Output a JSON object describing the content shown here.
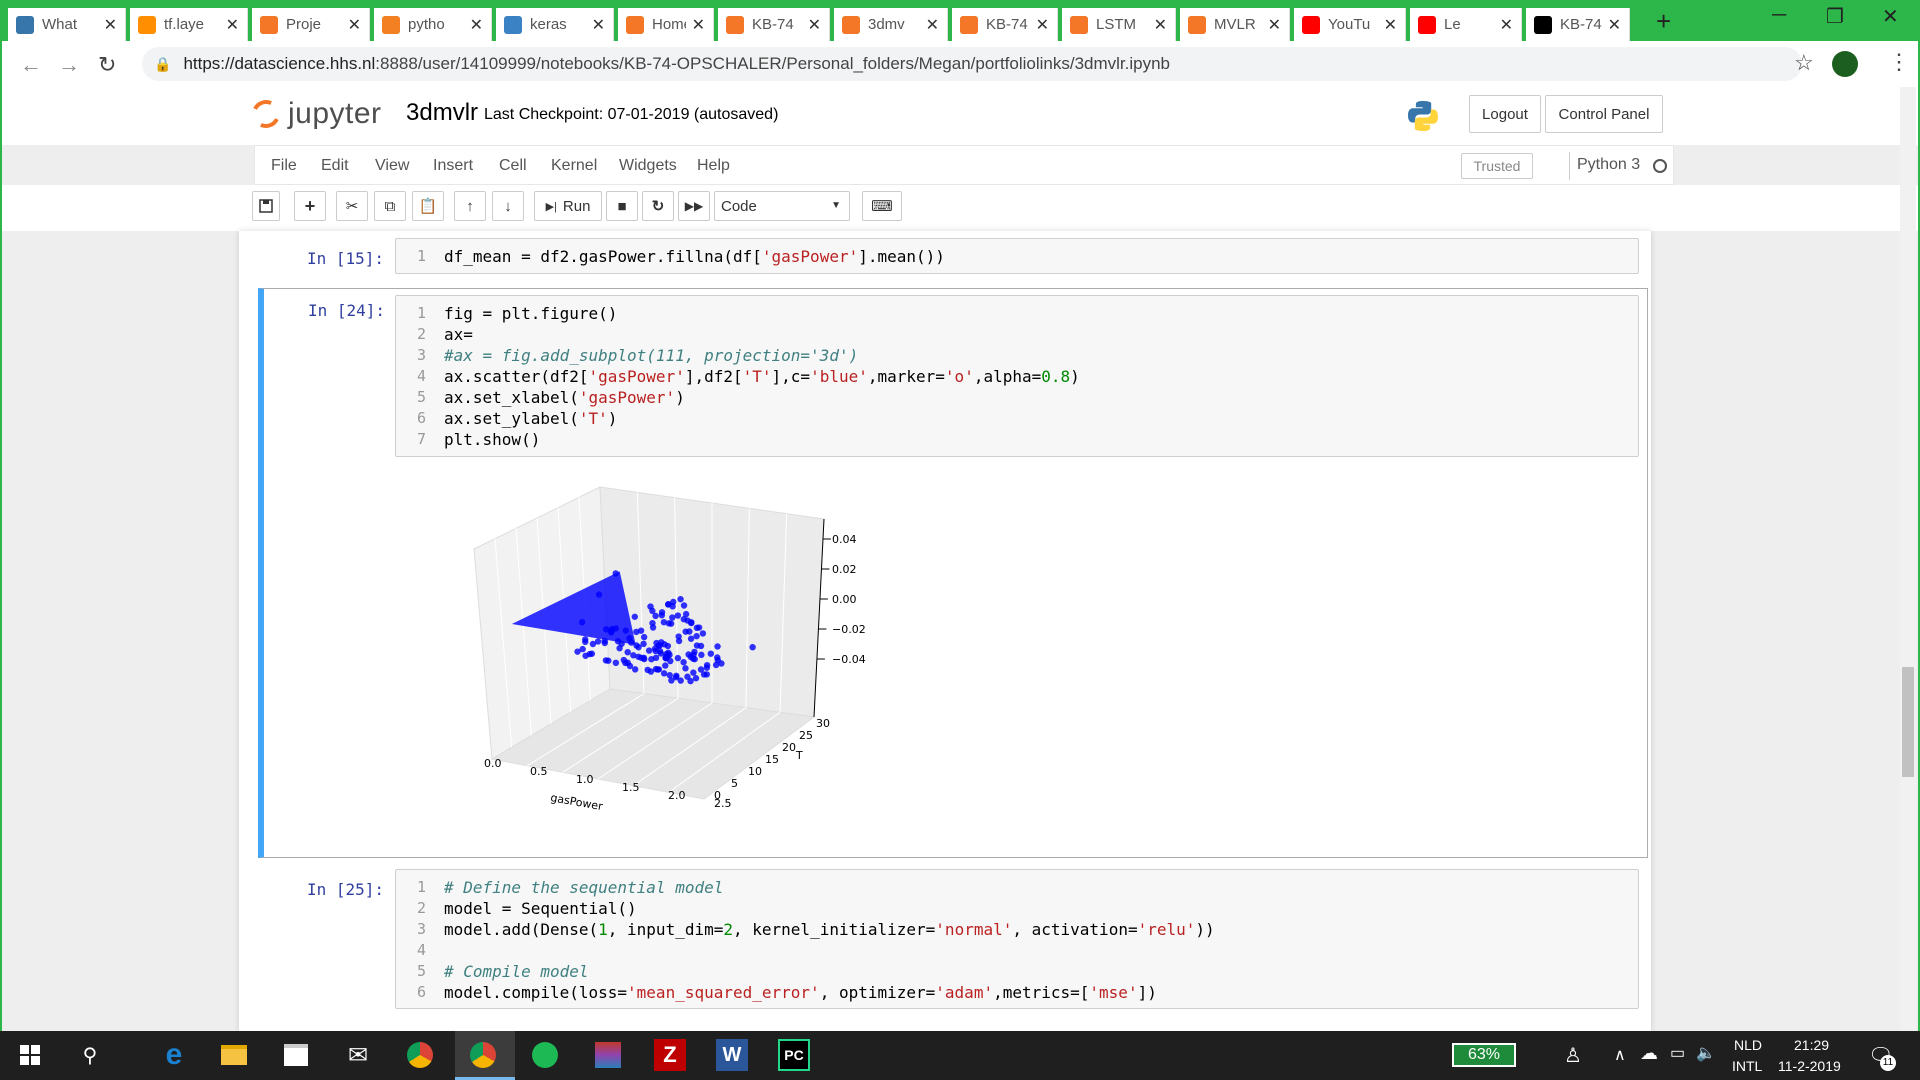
{
  "browser": {
    "tabs": [
      {
        "label": "What",
        "icon": "python-icon",
        "color": "#3776ab"
      },
      {
        "label": "tf.laye",
        "icon": "tensorflow-icon",
        "color": "#ff8f00"
      },
      {
        "label": "Proje",
        "icon": "jupyter-icon",
        "color": "#f37726"
      },
      {
        "label": "pytho",
        "icon": "stackoverflow-icon",
        "color": "#f48024"
      },
      {
        "label": "keras",
        "icon": "docs-icon",
        "color": "#3b82c4"
      },
      {
        "label": "Home",
        "icon": "jupyter-icon",
        "color": "#f37726"
      },
      {
        "label": "KB-74",
        "icon": "jupyter-icon",
        "color": "#f37726"
      },
      {
        "label": "3dmv",
        "icon": "notebook-icon",
        "color": "#f37726"
      },
      {
        "label": "KB-74",
        "icon": "jupyter-icon",
        "color": "#f37726"
      },
      {
        "label": "LSTM",
        "icon": "notebook-icon",
        "color": "#f37726"
      },
      {
        "label": "MVLR",
        "icon": "notebook-icon",
        "color": "#f37726"
      },
      {
        "label": "YouTu",
        "icon": "youtube-icon",
        "color": "#ff0000"
      },
      {
        "label": "Le",
        "icon": "youtube-icon",
        "color": "#ff0000"
      },
      {
        "label": "KB-74",
        "icon": "github-icon",
        "color": "#000000"
      }
    ],
    "url_host": "https://datascience.hhs.nl",
    "url_path": ":8888/user/14109999/notebooks/KB-74-OPSCHALER/Personal_folders/Megan/portfoliolinks/3dmvlr.ipynb"
  },
  "jupyter": {
    "logo_text": "jupyter",
    "notebook_name": "3dmvlr",
    "checkpoint": "Last Checkpoint: 07-01-2019  (autosaved)",
    "logout": "Logout",
    "control_panel": "Control Panel",
    "menu": [
      "File",
      "Edit",
      "View",
      "Insert",
      "Cell",
      "Kernel",
      "Widgets",
      "Help"
    ],
    "trusted": "Trusted",
    "kernel": "Python 3",
    "run_label": "Run",
    "cell_type": "Code"
  },
  "cells": [
    {
      "prompt": "In [15]:",
      "lines": [
        [
          [
            "df_mean = df2.gasPower.fillna(df[",
            ""
          ],
          [
            "'gasPower'",
            "str"
          ],
          [
            "].mean())",
            ""
          ]
        ]
      ]
    },
    {
      "prompt": "In [24]:",
      "lines": [
        [
          [
            "fig = plt.figure()",
            ""
          ]
        ],
        [
          [
            "ax=",
            ""
          ]
        ],
        [
          [
            "#ax = fig.add_subplot(111, projection='3d')",
            "cmt"
          ]
        ],
        [
          [
            "ax.scatter(df2[",
            ""
          ],
          [
            "'gasPower'",
            "str"
          ],
          [
            "],df2[",
            ""
          ],
          [
            "'T'",
            "str"
          ],
          [
            "],c=",
            ""
          ],
          [
            "'blue'",
            "str"
          ],
          [
            ",marker=",
            ""
          ],
          [
            "'o'",
            "str"
          ],
          [
            ",alpha=",
            ""
          ],
          [
            "0.8",
            "num"
          ],
          [
            ")",
            ""
          ]
        ],
        [
          [
            "ax.set_xlabel(",
            ""
          ],
          [
            "'gasPower'",
            "str"
          ],
          [
            ")",
            ""
          ]
        ],
        [
          [
            "ax.set_ylabel(",
            ""
          ],
          [
            "'T'",
            "str"
          ],
          [
            ")",
            ""
          ]
        ],
        [
          [
            "plt.show()",
            ""
          ]
        ]
      ]
    },
    {
      "prompt": "In [25]:",
      "lines": [
        [
          [
            "# Define the sequential model",
            "cmt"
          ]
        ],
        [
          [
            "model = Sequential()",
            ""
          ]
        ],
        [
          [
            "model.add(Dense(",
            ""
          ],
          [
            "1",
            "num"
          ],
          [
            ", input_dim=",
            ""
          ],
          [
            "2",
            "num"
          ],
          [
            ", kernel_initializer=",
            ""
          ],
          [
            "'normal'",
            "str"
          ],
          [
            ", activation=",
            ""
          ],
          [
            "'relu'",
            "str"
          ],
          [
            "))",
            ""
          ]
        ],
        [
          [
            "",
            ""
          ]
        ],
        [
          [
            "# Compile model",
            "cmt"
          ]
        ],
        [
          [
            "model.compile(loss=",
            ""
          ],
          [
            "'mean_squared_error'",
            "str"
          ],
          [
            ", optimizer=",
            ""
          ],
          [
            "'adam'",
            "str"
          ],
          [
            ",metrics=[",
            ""
          ],
          [
            "'mse'",
            "str"
          ],
          [
            "])",
            ""
          ]
        ]
      ]
    }
  ],
  "chart_data": {
    "type": "scatter",
    "projection": "3d",
    "xlabel": "gasPower",
    "ylabel": "T",
    "x_ticks": [
      "0.0",
      "0.5",
      "1.0",
      "1.5",
      "2.0",
      "2.5"
    ],
    "y_ticks": [
      "0",
      "5",
      "10",
      "15",
      "20",
      "25",
      "30"
    ],
    "z_ticks": [
      "0.04",
      "0.02",
      "0.00",
      "−0.02",
      "−0.04"
    ],
    "color": "#0000ff",
    "marker": "o",
    "alpha": 0.8,
    "x_range": [
      0,
      2.6
    ],
    "y_range": [
      0,
      30
    ],
    "z_value": 0,
    "description_points": [
      {
        "x": 0.1,
        "y": 28,
        "z": 0
      },
      {
        "x": 0.3,
        "y": 20,
        "z": 0
      },
      {
        "x": 0.6,
        "y": 10,
        "z": 0
      },
      {
        "x": 0.9,
        "y": 5,
        "z": 0
      },
      {
        "x": 1.2,
        "y": 12,
        "z": 0
      },
      {
        "x": 1.5,
        "y": 20,
        "z": 0
      },
      {
        "x": 1.8,
        "y": 8,
        "z": 0
      },
      {
        "x": 2.1,
        "y": 15,
        "z": 0
      },
      {
        "x": 2.4,
        "y": 18,
        "z": 0
      }
    ]
  },
  "taskbar": {
    "battery": "63%",
    "lang1": "NLD",
    "lang2": "INTL",
    "time": "21:29",
    "date": "11-2-2019",
    "notifications": "11"
  }
}
